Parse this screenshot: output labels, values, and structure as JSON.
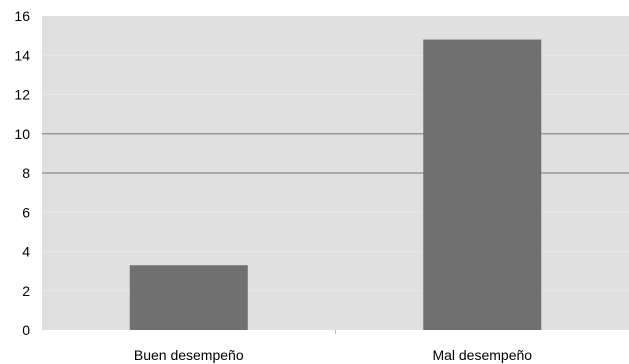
{
  "chart_data": {
    "type": "bar",
    "categories": [
      "Buen desempeño",
      "Mal desempeño"
    ],
    "values": [
      3.3,
      14.8
    ],
    "ylim": [
      0,
      16
    ],
    "yticks": [
      0,
      2,
      4,
      6,
      8,
      10,
      12,
      14,
      16
    ],
    "title": "",
    "xlabel": "",
    "ylabel": "",
    "grid": true,
    "colors": {
      "plot_background": "#e0e0e0",
      "bar": "#707070",
      "major_gridline": "#999999",
      "minor_gridline": "#e8e8e8"
    }
  }
}
